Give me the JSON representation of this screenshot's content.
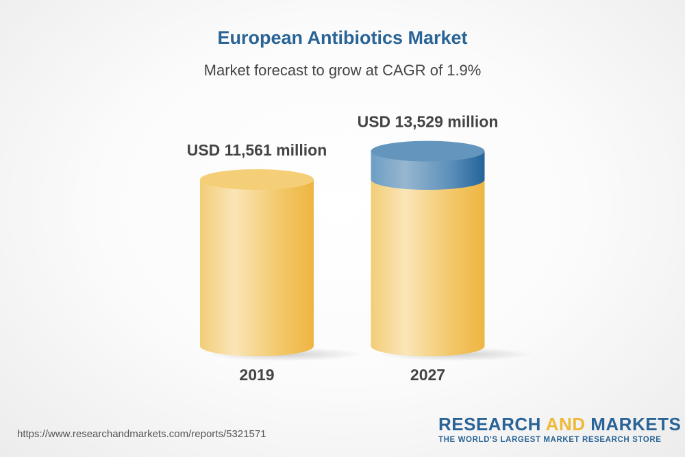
{
  "chart_data": {
    "type": "bar",
    "style": "3d-cylinder",
    "title": "European Antibiotics Market",
    "subtitle": "Market forecast to grow at CAGR of 1.9%",
    "categories": [
      "2019",
      "2027"
    ],
    "values": [
      11561,
      13529
    ],
    "data_labels": [
      "USD 11,561 million",
      "USD 13,529 million"
    ],
    "colors": {
      "base": "#f2c25a",
      "growth": "#2e6fa3"
    },
    "grid": false
  },
  "footer": {
    "url": "https://www.researchandmarkets.com/reports/5321571",
    "logo_part1": "RESEARCH ",
    "logo_part2": "AND",
    "logo_part3": " MARKETS",
    "tagline": "THE WORLD'S LARGEST MARKET RESEARCH STORE"
  }
}
